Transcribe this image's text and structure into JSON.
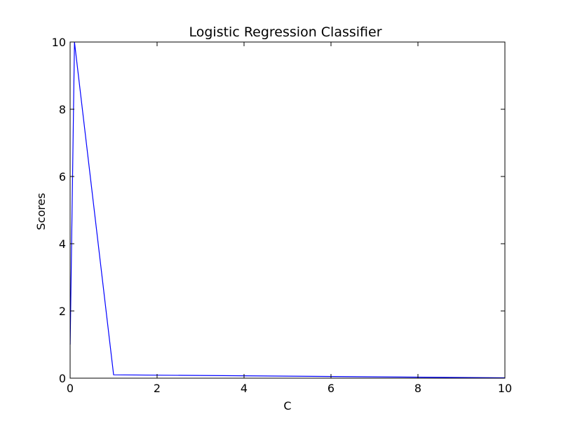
{
  "chart_data": {
    "type": "line",
    "title": "Logistic Regression Classifier",
    "xlabel": "C",
    "ylabel": "Scores",
    "xlim": [
      0,
      10
    ],
    "ylim": [
      0,
      10
    ],
    "x_ticks": [
      "0",
      "2",
      "4",
      "6",
      "8",
      "10"
    ],
    "y_ticks": [
      "0",
      "2",
      "4",
      "6",
      "8",
      "10"
    ],
    "grid": false,
    "series": [
      {
        "color": "#0000ff",
        "x": [
          0.001,
          0.1,
          1,
          10
        ],
        "y": [
          1.0,
          10.0,
          0.1,
          0.01
        ]
      }
    ]
  }
}
